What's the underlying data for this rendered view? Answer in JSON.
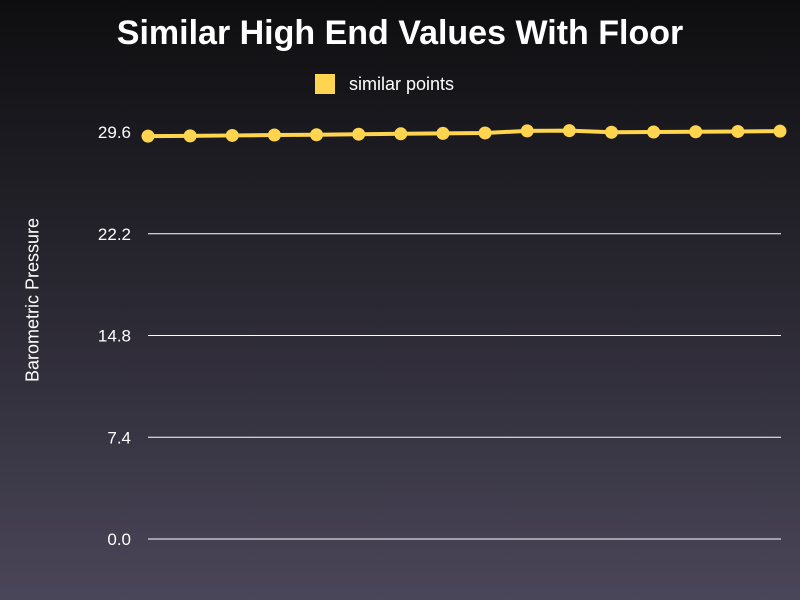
{
  "chart_data": {
    "type": "line",
    "title": "Similar High End Values With Floor",
    "xlabel": "",
    "ylabel": "Barometric Pressure",
    "ylim": [
      0,
      29.6
    ],
    "yticks": [
      "0.0",
      "7.4",
      "14.8",
      "22.2",
      "29.6"
    ],
    "grid": true,
    "legend_position": "top-center",
    "series": [
      {
        "name": "similar points",
        "color": "#ffd54f",
        "values": [
          29.3,
          29.32,
          29.35,
          29.38,
          29.4,
          29.44,
          29.47,
          29.5,
          29.53,
          29.68,
          29.7,
          29.58,
          29.6,
          29.62,
          29.64,
          29.66
        ]
      }
    ]
  }
}
